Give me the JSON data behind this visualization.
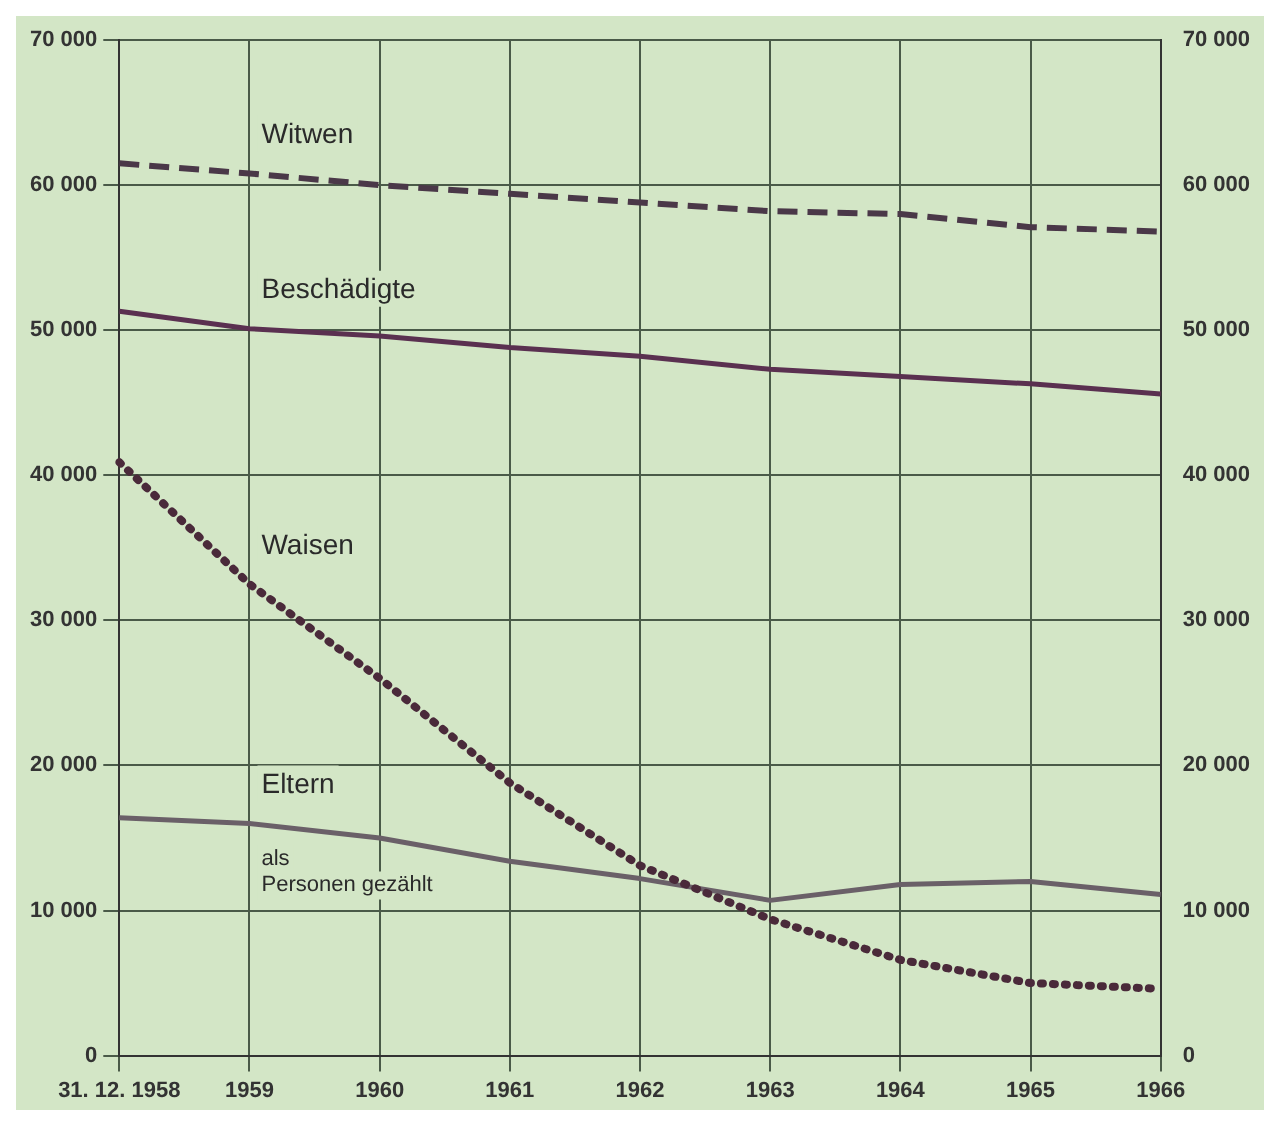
{
  "chart_data": {
    "type": "line",
    "categories": [
      "31. 12. 1958",
      "1959",
      "1960",
      "1961",
      "1962",
      "1963",
      "1964",
      "1965",
      "1966"
    ],
    "series": [
      {
        "name": "Witwen",
        "color": "#4a3848",
        "line_style": "dashed",
        "values": [
          61500,
          60800,
          60000,
          59400,
          58800,
          58200,
          58000,
          57100,
          56800
        ]
      },
      {
        "name": "Beschädigte",
        "color": "#5a3050",
        "line_style": "solid",
        "values": [
          51300,
          50100,
          49600,
          48800,
          48200,
          47300,
          46800,
          46300,
          45600
        ]
      },
      {
        "name": "Waisen",
        "color": "#4a2a3a",
        "line_style": "dotted",
        "values": [
          40900,
          32500,
          26000,
          18800,
          13100,
          9400,
          6600,
          5000,
          4600
        ]
      },
      {
        "name": "Eltern",
        "color": "#6a6068",
        "line_style": "solid",
        "values": [
          16400,
          16000,
          15000,
          13400,
          12200,
          10700,
          11800,
          12000,
          11100
        ]
      }
    ],
    "annotations": [
      "als Personen gezählt"
    ],
    "ylim": [
      0,
      70000
    ],
    "yticks": [
      {
        "value": 0,
        "label": "0"
      },
      {
        "value": 10000,
        "label": "10 000"
      },
      {
        "value": 20000,
        "label": "20 000"
      },
      {
        "value": 30000,
        "label": "30 000"
      },
      {
        "value": 40000,
        "label": "40 000"
      },
      {
        "value": 50000,
        "label": "50 000"
      },
      {
        "value": 60000,
        "label": "60 000"
      },
      {
        "value": 70000,
        "label": "70 000"
      }
    ],
    "y2lim": [
      0,
      70000
    ],
    "y2ticks": [
      {
        "value": 0,
        "label": "0"
      },
      {
        "value": 10000,
        "label": "10 000"
      },
      {
        "value": 20000,
        "label": "20 000"
      },
      {
        "value": 30000,
        "label": "30 000"
      },
      {
        "value": 40000,
        "label": "40 000"
      },
      {
        "value": 50000,
        "label": "50 000"
      },
      {
        "value": 60000,
        "label": "60 000"
      },
      {
        "value": 70000,
        "label": "70 000"
      }
    ],
    "grid": true,
    "legend": false,
    "marker": "none"
  }
}
